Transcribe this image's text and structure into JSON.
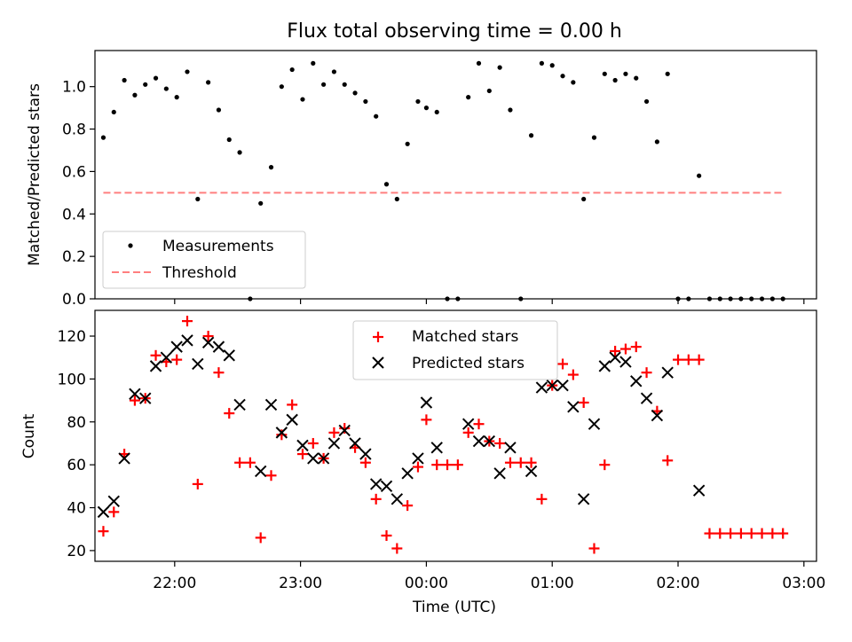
{
  "figure": {
    "title": "Flux total observing time = 0.00 h"
  },
  "chart_data": [
    {
      "type": "scatter",
      "ylabel": "Matched/Predicted stars",
      "xlabel": "",
      "ylim": [
        0,
        1.17
      ],
      "xlim": [
        "21:22",
        "03:06"
      ],
      "yticks": [
        "0.0",
        "0.2",
        "0.4",
        "0.6",
        "0.8",
        "1.0"
      ],
      "legend_position": "lower-left",
      "series": [
        {
          "name": "Measurements",
          "marker": "dot",
          "color": "#000000",
          "x": [
            "21:26",
            "21:31",
            "21:36",
            "21:41",
            "21:46",
            "21:51",
            "21:56",
            "22:01",
            "22:06",
            "22:11",
            "22:16",
            "22:21",
            "22:26",
            "22:31",
            "22:36",
            "22:41",
            "22:46",
            "22:51",
            "22:56",
            "23:01",
            "23:06",
            "23:11",
            "23:16",
            "23:21",
            "23:26",
            "23:31",
            "23:36",
            "23:41",
            "23:46",
            "23:51",
            "23:56",
            "00:00",
            "00:05",
            "00:10",
            "00:15",
            "00:20",
            "00:25",
            "00:30",
            "00:35",
            "00:40",
            "00:45",
            "00:50",
            "00:55",
            "01:00",
            "01:05",
            "01:10",
            "01:15",
            "01:20",
            "01:25",
            "01:30",
            "01:35",
            "01:40",
            "01:45",
            "01:50",
            "01:55",
            "02:00",
            "02:05",
            "02:10",
            "02:15",
            "02:20",
            "02:25",
            "02:30",
            "02:35",
            "02:40",
            "02:45",
            "02:50"
          ],
          "values": [
            0.76,
            0.88,
            1.03,
            0.96,
            1.01,
            1.04,
            0.99,
            0.95,
            1.07,
            0.47,
            1.02,
            0.89,
            0.75,
            0.69,
            0.0,
            0.45,
            0.62,
            1.0,
            1.08,
            0.94,
            1.11,
            1.01,
            1.07,
            1.01,
            0.97,
            0.93,
            0.86,
            0.54,
            0.47,
            0.73,
            0.93,
            0.9,
            0.88,
            0.0,
            0.0,
            0.95,
            1.11,
            0.98,
            1.09,
            0.89,
            0.0,
            0.77,
            1.11,
            1.1,
            1.05,
            1.02,
            0.47,
            0.76,
            1.06,
            1.03,
            1.06,
            1.04,
            0.93,
            0.74,
            1.06,
            0.0,
            0.0,
            0.58,
            0.0,
            0.0,
            0.0,
            0.0,
            0.0,
            0.0,
            0.0,
            0.0
          ]
        },
        {
          "name": "Threshold",
          "style": "dashed",
          "color": "#ff7f7f",
          "x": [
            "21:26",
            "02:50"
          ],
          "values": [
            0.5,
            0.5
          ]
        }
      ]
    },
    {
      "type": "scatter",
      "ylabel": "Count",
      "xlabel": "Time (UTC)",
      "ylim": [
        15,
        132
      ],
      "xlim": [
        "21:22",
        "03:06"
      ],
      "yticks": [
        "20",
        "40",
        "60",
        "80",
        "100",
        "120"
      ],
      "xticks": [
        "22:00",
        "23:00",
        "00:00",
        "01:00",
        "02:00",
        "03:00"
      ],
      "legend_position": "top-center",
      "series": [
        {
          "name": "Matched stars",
          "marker": "plus",
          "color": "#ff0000",
          "x": [
            "21:26",
            "21:31",
            "21:36",
            "21:41",
            "21:46",
            "21:51",
            "21:56",
            "22:01",
            "22:06",
            "22:11",
            "22:16",
            "22:21",
            "22:26",
            "22:31",
            "22:36",
            "22:41",
            "22:46",
            "22:51",
            "22:56",
            "23:01",
            "23:06",
            "23:11",
            "23:16",
            "23:21",
            "23:26",
            "23:31",
            "23:36",
            "23:41",
            "23:46",
            "23:51",
            "23:56",
            "00:00",
            "00:05",
            "00:10",
            "00:15",
            "00:20",
            "00:25",
            "00:30",
            "00:35",
            "00:40",
            "00:45",
            "00:50",
            "00:55",
            "01:00",
            "01:05",
            "01:10",
            "01:15",
            "01:20",
            "01:25",
            "01:30",
            "01:35",
            "01:40",
            "01:45",
            "01:50",
            "01:55",
            "02:00",
            "02:05",
            "02:10",
            "02:15",
            "02:20",
            "02:25",
            "02:30",
            "02:35",
            "02:40",
            "02:45",
            "02:50"
          ],
          "values": [
            29,
            38,
            65,
            90,
            91,
            111,
            108,
            109,
            127,
            51,
            120,
            103,
            84,
            61,
            61,
            26,
            55,
            74,
            88,
            65,
            70,
            63,
            75,
            77,
            68,
            61,
            44,
            27,
            21,
            41,
            59,
            81,
            60,
            60,
            60,
            75,
            79,
            71,
            70,
            61,
            61,
            61,
            44,
            97,
            107,
            102,
            89,
            21,
            60,
            113,
            114,
            115,
            103,
            85,
            62,
            109,
            109,
            109,
            28,
            28,
            28,
            28,
            28,
            28,
            28,
            28
          ]
        },
        {
          "name": "Predicted stars",
          "marker": "x",
          "color": "#000000",
          "x": [
            "21:26",
            "21:31",
            "21:36",
            "21:41",
            "21:46",
            "21:51",
            "21:56",
            "22:01",
            "22:06",
            "22:11",
            "22:16",
            "22:21",
            "22:26",
            "22:31",
            "22:36",
            "22:41",
            "22:46",
            "22:51",
            "22:56",
            "23:01",
            "23:06",
            "23:11",
            "23:16",
            "23:21",
            "23:26",
            "23:31",
            "23:36",
            "23:41",
            "23:46",
            "23:51",
            "23:56",
            "00:00",
            "00:05",
            "00:10",
            "00:15",
            "00:20",
            "00:25",
            "00:30",
            "00:35",
            "00:40",
            "00:45",
            "00:50",
            "00:55",
            "01:00",
            "01:05",
            "01:10",
            "01:15",
            "01:20",
            "01:25",
            "01:30",
            "01:35",
            "01:40",
            "01:45",
            "01:50",
            "01:55",
            "02:00",
            "02:05",
            "02:10"
          ],
          "values": [
            38,
            43,
            63,
            93,
            91,
            106,
            110,
            115,
            118,
            107,
            117,
            115,
            111,
            88,
            null,
            57,
            88,
            75,
            81,
            69,
            63,
            63,
            70,
            76,
            70,
            65,
            51,
            50,
            44,
            56,
            63,
            89,
            68,
            null,
            null,
            79,
            71,
            71,
            56,
            68,
            null,
            57,
            96,
            97,
            97,
            87,
            44,
            79,
            106,
            110,
            108,
            99,
            91,
            83,
            103,
            null,
            null,
            48
          ]
        }
      ]
    }
  ]
}
